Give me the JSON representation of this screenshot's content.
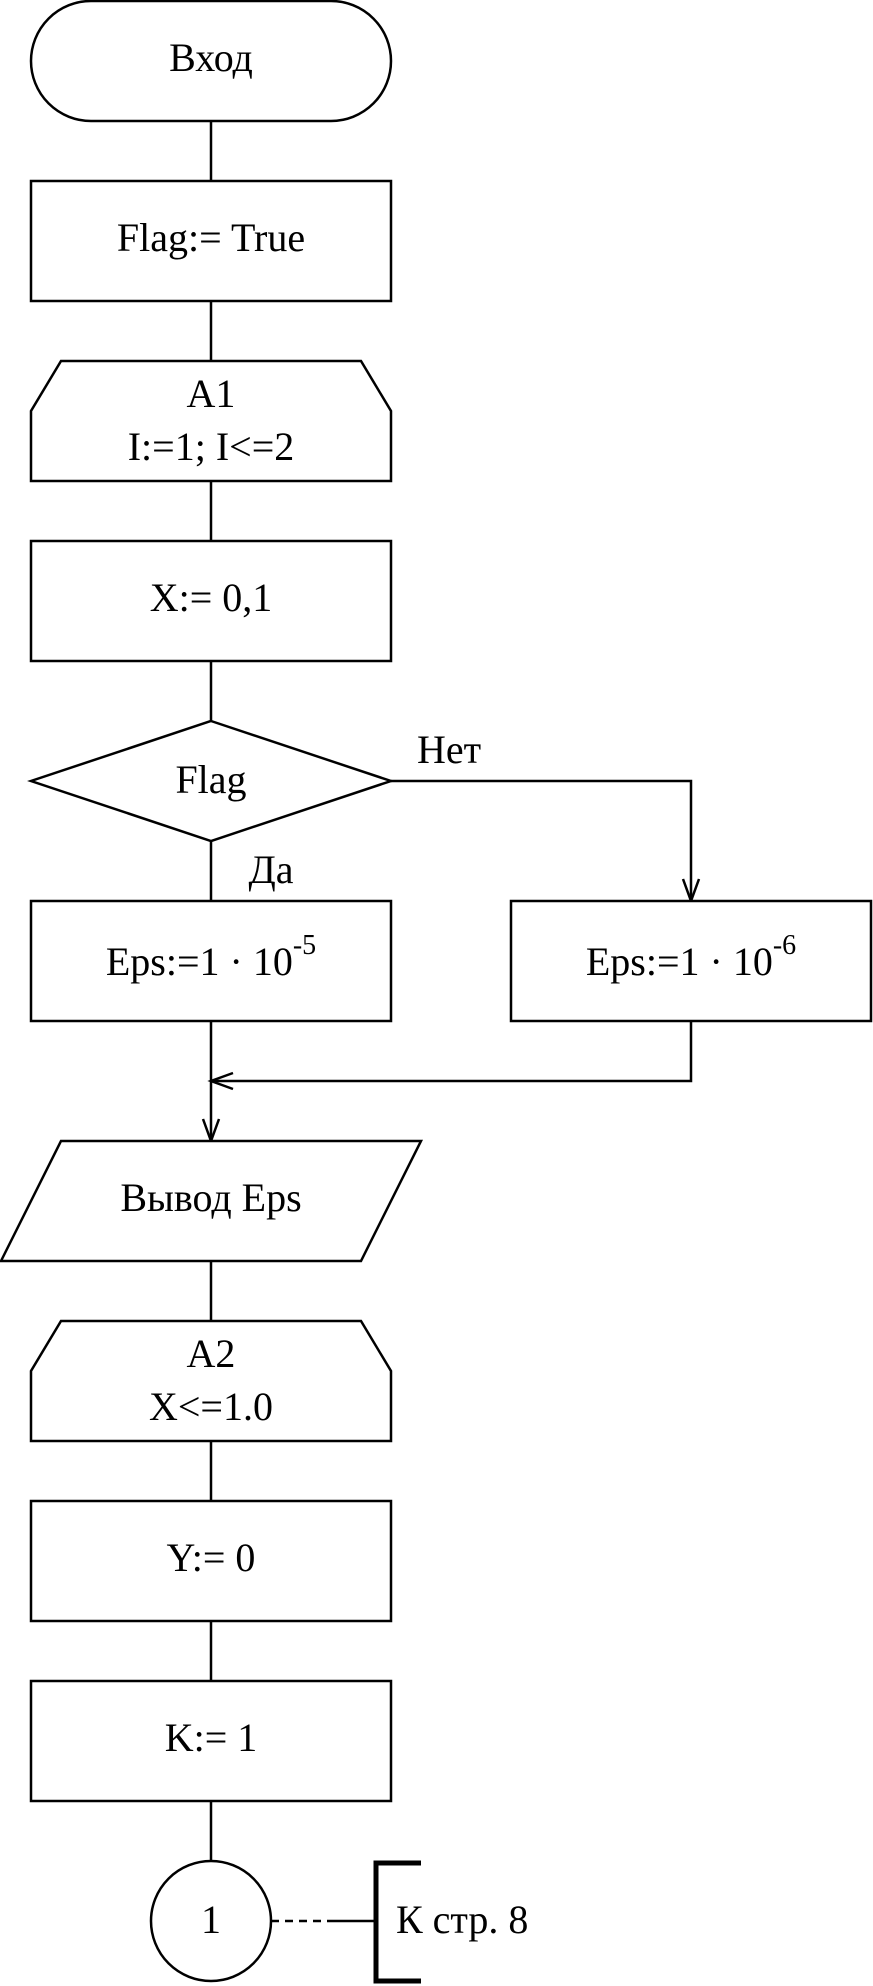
{
  "start": "Вход",
  "flag_init": "Flag:= True",
  "loop1": {
    "name": "A1",
    "condition": "I:=1; I<=2"
  },
  "x_init": "X:= 0,1",
  "decision": {
    "label": "Flag",
    "yes": "Да",
    "no": "Нет"
  },
  "eps_yes": {
    "base": "Eps:=1 · 10",
    "exponent": "-5"
  },
  "eps_no": {
    "base": "Eps:=1 · 10",
    "exponent": "-6"
  },
  "output": "Вывод Eps",
  "loop2": {
    "name": "A2",
    "condition": "X<=1.0"
  },
  "y_init": "Y:= 0",
  "k_init": "K:= 1",
  "connector": {
    "label": "1",
    "comment": "К стр. 8"
  }
}
